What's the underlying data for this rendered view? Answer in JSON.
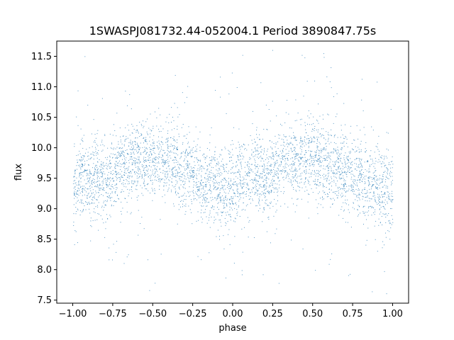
{
  "chart_data": {
    "type": "scatter",
    "title": "1SWASPJ081732.44-052004.1 Period 3890847.75s",
    "xlabel": "phase",
    "ylabel": "flux",
    "xlim": [
      -1.1,
      1.1
    ],
    "ylim": [
      7.45,
      11.75
    ],
    "x_ticks": [
      -1.0,
      -0.75,
      -0.5,
      -0.25,
      0.0,
      0.25,
      0.5,
      0.75,
      1.0
    ],
    "x_tick_labels": [
      "−1.00",
      "−0.75",
      "−0.50",
      "−0.25",
      "0.00",
      "0.25",
      "0.50",
      "0.75",
      "1.00"
    ],
    "y_ticks": [
      7.5,
      8.0,
      8.5,
      9.0,
      9.5,
      10.0,
      10.5,
      11.0,
      11.5
    ],
    "y_tick_labels": [
      "7.5",
      "8.0",
      "8.5",
      "9.0",
      "9.5",
      "10.0",
      "10.5",
      "11.0",
      "11.5"
    ],
    "grid": false,
    "point_color": "#1f77b4",
    "phase_range": [
      -1.0,
      1.0
    ],
    "baseline_profile": [
      [
        0.0,
        9.3
      ],
      [
        0.05,
        9.55
      ],
      [
        0.1,
        9.5
      ],
      [
        0.15,
        9.6
      ],
      [
        0.2,
        9.4
      ],
      [
        0.3,
        9.75
      ],
      [
        0.4,
        9.8
      ],
      [
        0.5,
        9.85
      ],
      [
        0.6,
        9.75
      ],
      [
        0.7,
        9.6
      ],
      [
        0.8,
        9.45
      ],
      [
        0.9,
        9.35
      ],
      [
        1.0,
        9.3
      ]
    ],
    "scatter_sigma": 0.32
  }
}
